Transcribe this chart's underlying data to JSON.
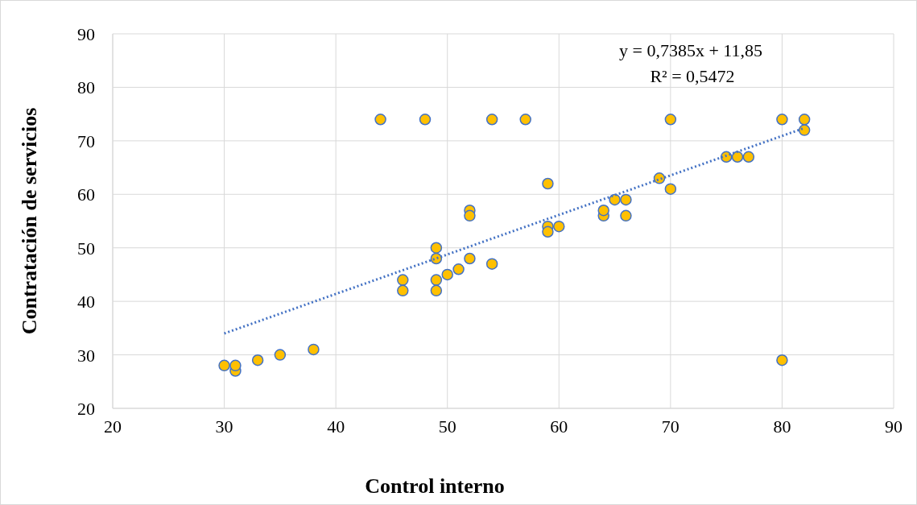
{
  "chart_data": {
    "type": "scatter",
    "xlabel": "Control interno",
    "ylabel": "Contratación de servicios",
    "xlim": [
      20,
      90
    ],
    "xticks": [
      20,
      30,
      40,
      50,
      60,
      70,
      80,
      90
    ],
    "ylim": [
      20,
      90
    ],
    "yticks": [
      20,
      30,
      40,
      50,
      60,
      70,
      80,
      90
    ],
    "grid": true,
    "annotations": [
      "y = 0,7385x + 11,85",
      "R² = 0,5472"
    ],
    "series": [
      {
        "color": "#ffc000",
        "marker": "circle",
        "x": [
          30,
          31,
          31,
          33,
          35,
          38,
          44,
          46,
          46,
          48,
          49,
          49,
          49,
          49,
          50,
          51,
          52,
          52,
          52,
          54,
          54,
          57,
          59,
          59,
          59,
          60,
          64,
          64,
          65,
          66,
          66,
          69,
          70,
          70,
          75,
          76,
          77,
          80,
          80,
          82,
          82
        ],
        "values": [
          28,
          27,
          28,
          29,
          30,
          31,
          74,
          44,
          42,
          74,
          50,
          48,
          44,
          42,
          45,
          46,
          57,
          56,
          48,
          74,
          47,
          74,
          62,
          54,
          53,
          54,
          56,
          57,
          59,
          59,
          56,
          63,
          74,
          61,
          67,
          67,
          67,
          74,
          29,
          74,
          72
        ]
      },
      {
        "type": "line",
        "color": "#4472c4",
        "marker": "none",
        "line_style": "dotted",
        "x": [
          30,
          82
        ],
        "values": [
          34.0,
          72.4
        ]
      }
    ]
  }
}
